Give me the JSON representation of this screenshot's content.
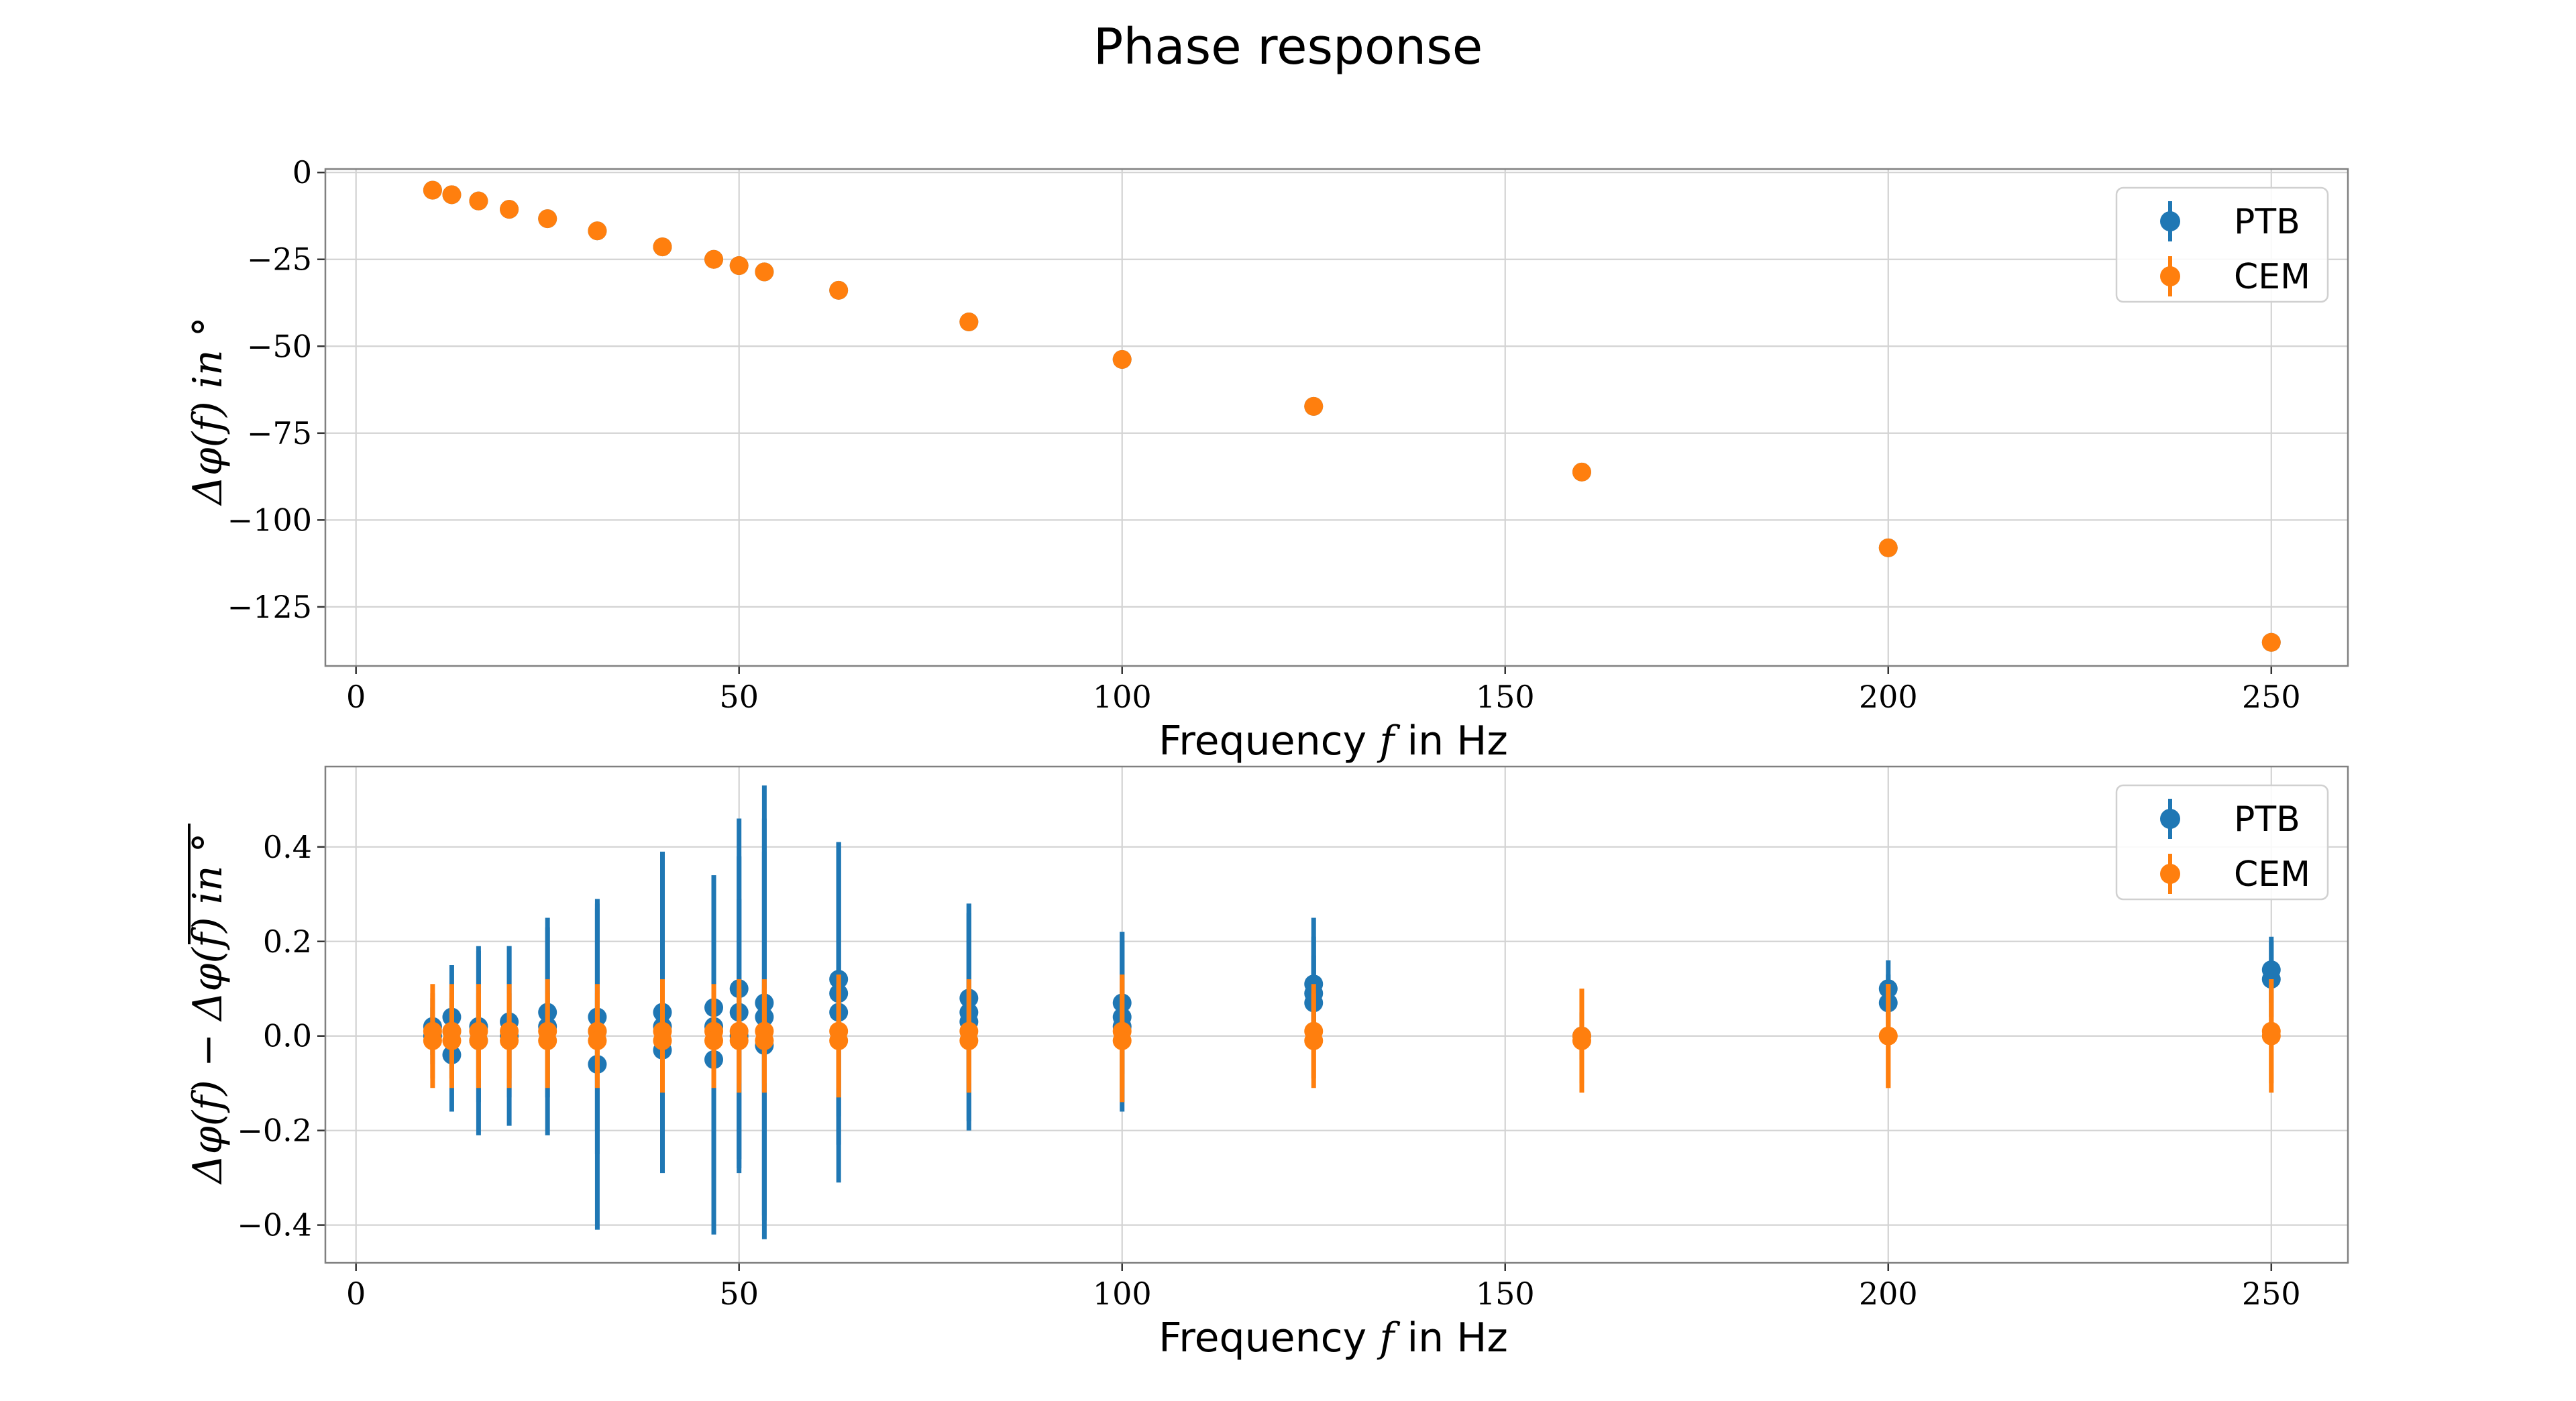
{
  "title": "Phase response",
  "colors": {
    "PTB": "#1f77b4",
    "CEM": "#ff7f0e"
  },
  "chart_data": [
    {
      "type": "scatter",
      "xlabel": "Frequency f in Hz",
      "ylabel": "Δφ(f) in °",
      "xlim": [
        -4,
        260
      ],
      "ylim": [
        -142,
        1
      ],
      "xticks": [
        0,
        50,
        100,
        150,
        200,
        250
      ],
      "xtick_labels": [
        "0",
        "50",
        "100",
        "150",
        "200",
        "250"
      ],
      "yticks": [
        0,
        -25,
        -50,
        -75,
        -100,
        -125
      ],
      "ytick_labels": [
        "0",
        "−25",
        "−50",
        "−75",
        "−100",
        "−125"
      ],
      "grid": true,
      "legend": "top-right",
      "series": [
        {
          "name": "PTB",
          "x": [
            10,
            12.5,
            16,
            20,
            25,
            31.5,
            40,
            46.7,
            50,
            53.3,
            63,
            80,
            100,
            125,
            160,
            200,
            250
          ],
          "y": [
            -5.1,
            -6.4,
            -8.2,
            -10.6,
            -13.3,
            -16.8,
            -21.4,
            -25.0,
            -26.8,
            -28.6,
            -33.9,
            -43.0,
            -53.8,
            -67.3,
            -86.2,
            -108.0,
            -135.2
          ]
        },
        {
          "name": "CEM",
          "x": [
            10,
            12.5,
            16,
            20,
            25,
            31.5,
            40,
            46.7,
            50,
            53.3,
            63,
            80,
            100,
            125,
            160,
            200,
            250
          ],
          "y": [
            -5.1,
            -6.4,
            -8.2,
            -10.6,
            -13.3,
            -16.8,
            -21.4,
            -25.0,
            -26.8,
            -28.6,
            -33.9,
            -43.0,
            -53.8,
            -67.3,
            -86.2,
            -108.0,
            -135.2
          ]
        }
      ]
    },
    {
      "type": "scatter",
      "xlabel": "Frequency f in Hz",
      "ylabel": "Δφ(f) − Δφ(f) in °",
      "xlim": [
        -4,
        260
      ],
      "ylim": [
        -0.48,
        0.57
      ],
      "xticks": [
        0,
        50,
        100,
        150,
        200,
        250
      ],
      "xtick_labels": [
        "0",
        "50",
        "100",
        "150",
        "200",
        "250"
      ],
      "yticks": [
        0.4,
        0.2,
        0.0,
        -0.2,
        -0.4
      ],
      "ytick_labels": [
        "0.4",
        "0.2",
        "0.0",
        "−0.2",
        "−0.4"
      ],
      "grid": true,
      "legend": "top-right",
      "series": [
        {
          "name": "PTB",
          "x": [
            10,
            10,
            12.5,
            12.5,
            12.5,
            16,
            16,
            20,
            20,
            25,
            25,
            31.5,
            31.5,
            31.5,
            40,
            40,
            40,
            46.7,
            46.7,
            46.7,
            50,
            50,
            50,
            53.3,
            53.3,
            53.3,
            63,
            63,
            63,
            80,
            80,
            80,
            100,
            100,
            100,
            125,
            125,
            125,
            160,
            200,
            200,
            250,
            250
          ],
          "y": [
            0.02,
            0.0,
            0.04,
            0.01,
            -0.04,
            0.02,
            -0.01,
            0.03,
            0.0,
            0.05,
            0.02,
            0.04,
            0.01,
            -0.06,
            0.05,
            0.02,
            -0.03,
            0.06,
            0.02,
            -0.05,
            0.1,
            0.05,
            0.0,
            0.07,
            0.04,
            -0.02,
            0.12,
            0.09,
            0.05,
            0.08,
            0.05,
            0.03,
            0.07,
            0.04,
            0.02,
            0.11,
            0.09,
            0.07,
            0.0,
            0.1,
            0.07,
            0.14,
            0.12
          ],
          "yerr": [
            0.06,
            0.06,
            0.11,
            0.1,
            0.12,
            0.16,
            0.2,
            0.16,
            0.19,
            0.18,
            0.23,
            0.24,
            0.26,
            0.35,
            0.34,
            0.3,
            0.25,
            0.28,
            0.32,
            0.37,
            0.36,
            0.33,
            0.29,
            0.46,
            0.42,
            0.41,
            0.29,
            0.32,
            0.36,
            0.2,
            0.23,
            0.23,
            0.15,
            0.18,
            0.18,
            0.14,
            0.12,
            0.1,
            0.05,
            0.06,
            0.06,
            0.07,
            0.08
          ]
        },
        {
          "name": "CEM",
          "x": [
            10,
            10,
            12.5,
            12.5,
            16,
            16,
            20,
            20,
            25,
            25,
            31.5,
            31.5,
            40,
            40,
            46.7,
            46.7,
            50,
            50,
            53.3,
            53.3,
            63,
            63,
            80,
            80,
            100,
            100,
            125,
            125,
            160,
            160,
            200,
            200,
            250,
            250
          ],
          "y": [
            0.01,
            -0.01,
            0.01,
            -0.01,
            0.01,
            -0.01,
            0.01,
            -0.01,
            0.01,
            -0.01,
            0.01,
            -0.01,
            0.01,
            -0.01,
            0.01,
            -0.01,
            0.01,
            -0.01,
            0.01,
            -0.01,
            0.01,
            -0.01,
            0.01,
            -0.01,
            0.01,
            -0.01,
            0.01,
            -0.01,
            0.0,
            -0.01,
            0.0,
            0.0,
            0.01,
            0.0
          ],
          "yerr": [
            0.1,
            0.1,
            0.1,
            0.1,
            0.1,
            0.1,
            0.1,
            0.1,
            0.11,
            0.1,
            0.1,
            0.1,
            0.11,
            0.11,
            0.1,
            0.1,
            0.11,
            0.11,
            0.11,
            0.11,
            0.12,
            0.12,
            0.11,
            0.11,
            0.12,
            0.13,
            0.1,
            0.1,
            0.1,
            0.11,
            0.11,
            0.11,
            0.11,
            0.12
          ]
        }
      ]
    }
  ]
}
